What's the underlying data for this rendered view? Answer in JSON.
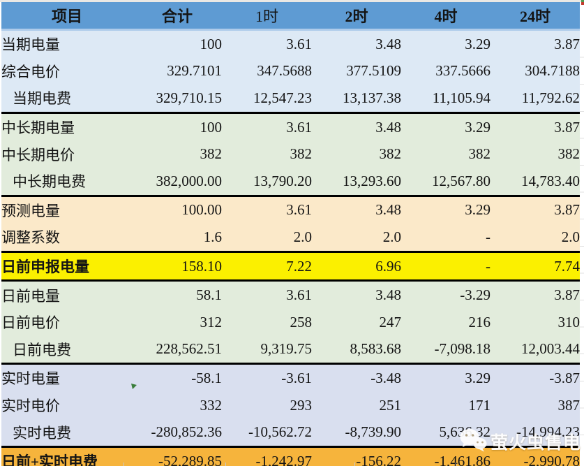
{
  "table": {
    "columns": [
      "项目",
      "合计",
      "1时",
      "2时",
      "4时",
      "24时"
    ],
    "sections": [
      {
        "name": "current-period",
        "bg": "blue",
        "rows": [
          {
            "label": "当期电量",
            "values": [
              "100",
              "3.61",
              "3.48",
              "3.29",
              "3.87"
            ]
          },
          {
            "label": "综合电价",
            "values": [
              "329.7101",
              "347.5688",
              "377.5109",
              "337.5666",
              "304.7188"
            ]
          },
          {
            "label": "当期电费",
            "indent": true,
            "values": [
              "329,710.15",
              "12,547.23",
              "13,137.38",
              "11,105.94",
              "11,792.62"
            ]
          }
        ]
      },
      {
        "name": "mid-long-term",
        "bg": "green",
        "rows": [
          {
            "label": "中长期电量",
            "values": [
              "100",
              "3.61",
              "3.48",
              "3.29",
              "3.87"
            ]
          },
          {
            "label": "中长期电价",
            "values": [
              "382",
              "382",
              "382",
              "382",
              "382"
            ]
          },
          {
            "label": "中长期电费",
            "indent": true,
            "values": [
              "382,000.00",
              "13,790.20",
              "13,293.60",
              "12,567.80",
              "14,783.40"
            ]
          }
        ]
      },
      {
        "name": "forecast",
        "bg": "tan",
        "rows": [
          {
            "label": "预测电量",
            "values": [
              "100.00",
              "3.61",
              "3.48",
              "3.29",
              "3.87"
            ]
          },
          {
            "label": "调整系数",
            "values": [
              "1.6",
              "2.0",
              "2.0",
              "-",
              "2.0"
            ]
          }
        ]
      },
      {
        "name": "day-ahead-declared",
        "bg": "yellow",
        "rows": [
          {
            "label": "日前申报电量",
            "bold": true,
            "values": [
              "158.10",
              "7.22",
              "6.96",
              "-",
              "7.74"
            ]
          }
        ]
      },
      {
        "name": "day-ahead",
        "bg": "green",
        "rows": [
          {
            "label": "日前电量",
            "values": [
              "58.1",
              "3.61",
              "3.48",
              "-3.29",
              "3.87"
            ]
          },
          {
            "label": "日前电价",
            "values": [
              "312",
              "258",
              "247",
              "216",
              "310"
            ]
          },
          {
            "label": "日前电费",
            "indent": true,
            "values": [
              "228,562.51",
              "9,319.75",
              "8,583.68",
              "-7,098.18",
              "12,003.44"
            ]
          }
        ]
      },
      {
        "name": "real-time",
        "bg": "lavender",
        "rows": [
          {
            "label": "实时电量",
            "values": [
              "-58.1",
              "-3.61",
              "-3.48",
              "3.29",
              "-3.87"
            ]
          },
          {
            "label": "实时电价",
            "values": [
              "332",
              "293",
              "251",
              "171",
              "387"
            ]
          },
          {
            "label": "实时电费",
            "indent": true,
            "values": [
              "-280,852.36",
              "-10,562.72",
              "-8,739.90",
              "5,636.32",
              "-14,994.23"
            ]
          }
        ]
      },
      {
        "name": "day-ahead-plus-real-time-total",
        "bg": "orange",
        "rows": [
          {
            "label": "日前+实时电费",
            "bold": true,
            "values": [
              "-52,289.85",
              "-1,242.97",
              "-156.22",
              "-1,461.86",
              "-2,990.78"
            ]
          }
        ]
      }
    ]
  },
  "watermark": {
    "icon": "wechat-icon",
    "text": "萤火虫售电"
  },
  "colors": {
    "header": "#5e9bd3",
    "blue": "#dde9f5",
    "green": "#e2ecdc",
    "tan": "#fbe9c9",
    "yellow": "#fbf000",
    "lavender": "#d9dfef",
    "orange": "#f6b43c",
    "marker_green": "#3a7d3a",
    "border": "#000000",
    "text": "#141414"
  }
}
